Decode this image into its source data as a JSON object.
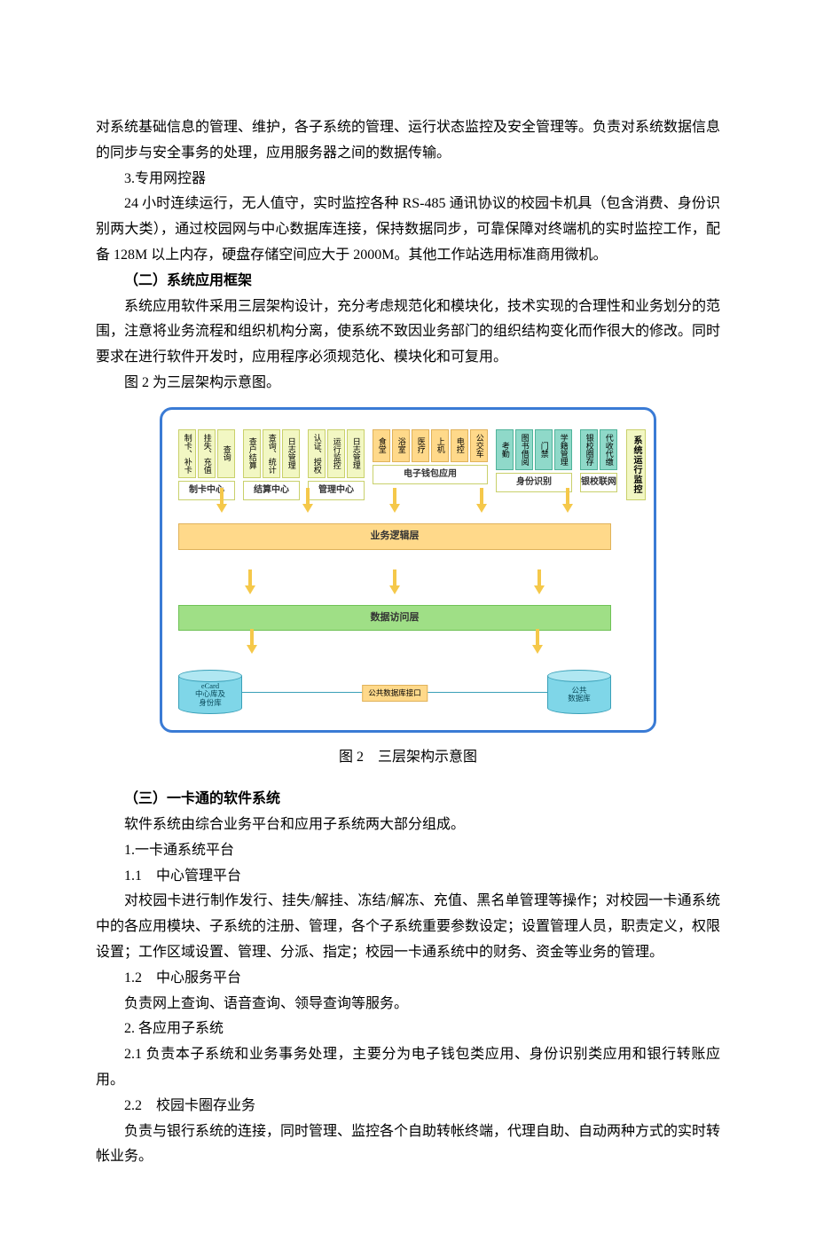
{
  "para1": "对系统基础信息的管理、维护，各子系统的管理、运行状态监控及安全管理等。负责对系统数据信息的同步与安全事务的处理，应用服务器之间的数据传输。",
  "para2_head": "3.专用网控器",
  "para3": "24 小时连续运行，无人值守，实时监控各种 RS-485 通讯协议的校园卡机具（包含消费、身份识别两大类），通过校园网与中心数据库连接，保持数据同步，可靠保障对终端机的实时监控工作，配备 128M 以上内存，硬盘存储空间应大于 2000M。其他工作站选用标准商用微机。",
  "h2_1": "（二）系统应用框架",
  "para4": "系统应用软件采用三层架构设计，充分考虑规范化和模块化，技术实现的合理性和业务划分的范围，注意将业务流程和组织机构分离，使系统不致因业务部门的组织结构变化而作很大的修改。同时要求在进行软件开发时，应用程序必须规范化、模块化和可复用。",
  "para5": "图 2 为三层架构示意图。",
  "caption": "图 2　三层架构示意图",
  "h2_2": "（三）一卡通的软件系统",
  "para6": "软件系统由综合业务平台和应用子系统两大部分组成。",
  "para7": "1.一卡通系统平台",
  "para8": "1.1　中心管理平台",
  "para9": "对校园卡进行制作发行、挂失/解挂、冻结/解冻、充值、黑名单管理等操作；对校园一卡通系统中的各应用模块、子系统的注册、管理，各个子系统重要参数设定；设置管理人员，职责定义，权限设置；工作区域设置、管理、分派、指定；校园一卡通系统中的财务、资金等业务的管理。",
  "para10": "1.2　中心服务平台",
  "para11": "负责网上查询、语音查询、领导查询等服务。",
  "para12": "2. 各应用子系统",
  "para13": "2.1 负责本子系统和业务事务处理，主要分为电子钱包类应用、身份识别类应用和银行转账应用。",
  "para14": "2.2　校园卡圈存业务",
  "para15": "负责与银行系统的连接，同时管理、监控各个自助转帐终端，代理自助、自动两种方式的实时转帐业务。",
  "diagram": {
    "groups": [
      {
        "label": "制卡中心",
        "color": "yellow",
        "cols": [
          "制卡、补卡",
          "挂失、充值",
          "查询"
        ]
      },
      {
        "label": "结算中心",
        "color": "yellow",
        "cols": [
          "查户结算",
          "查询、统计",
          "日志管理"
        ]
      },
      {
        "label": "管理中心",
        "color": "yellow",
        "cols": [
          "认证、授权",
          "运行监控",
          "日志管理"
        ]
      },
      {
        "label": "电子钱包应用",
        "color": "orange",
        "cols": [
          "食堂",
          "浴室",
          "医疗",
          "上机",
          "电控",
          "公交车"
        ]
      },
      {
        "label": "身份识别",
        "color": "teal",
        "cols": [
          "考勤",
          "图书借阅",
          "门禁",
          "学籍管理"
        ]
      },
      {
        "label": "银校联网",
        "color": "teal",
        "cols": [
          "银校圈存",
          "代收代缴"
        ]
      }
    ],
    "side_label": "系统运行监控",
    "layer_business": "业务逻辑层",
    "layer_data": "数据访问层",
    "db_left": "eCard\n中心库及\n身份库",
    "db_conn": "公共数据库接口",
    "db_right": "公共\n数据库"
  }
}
